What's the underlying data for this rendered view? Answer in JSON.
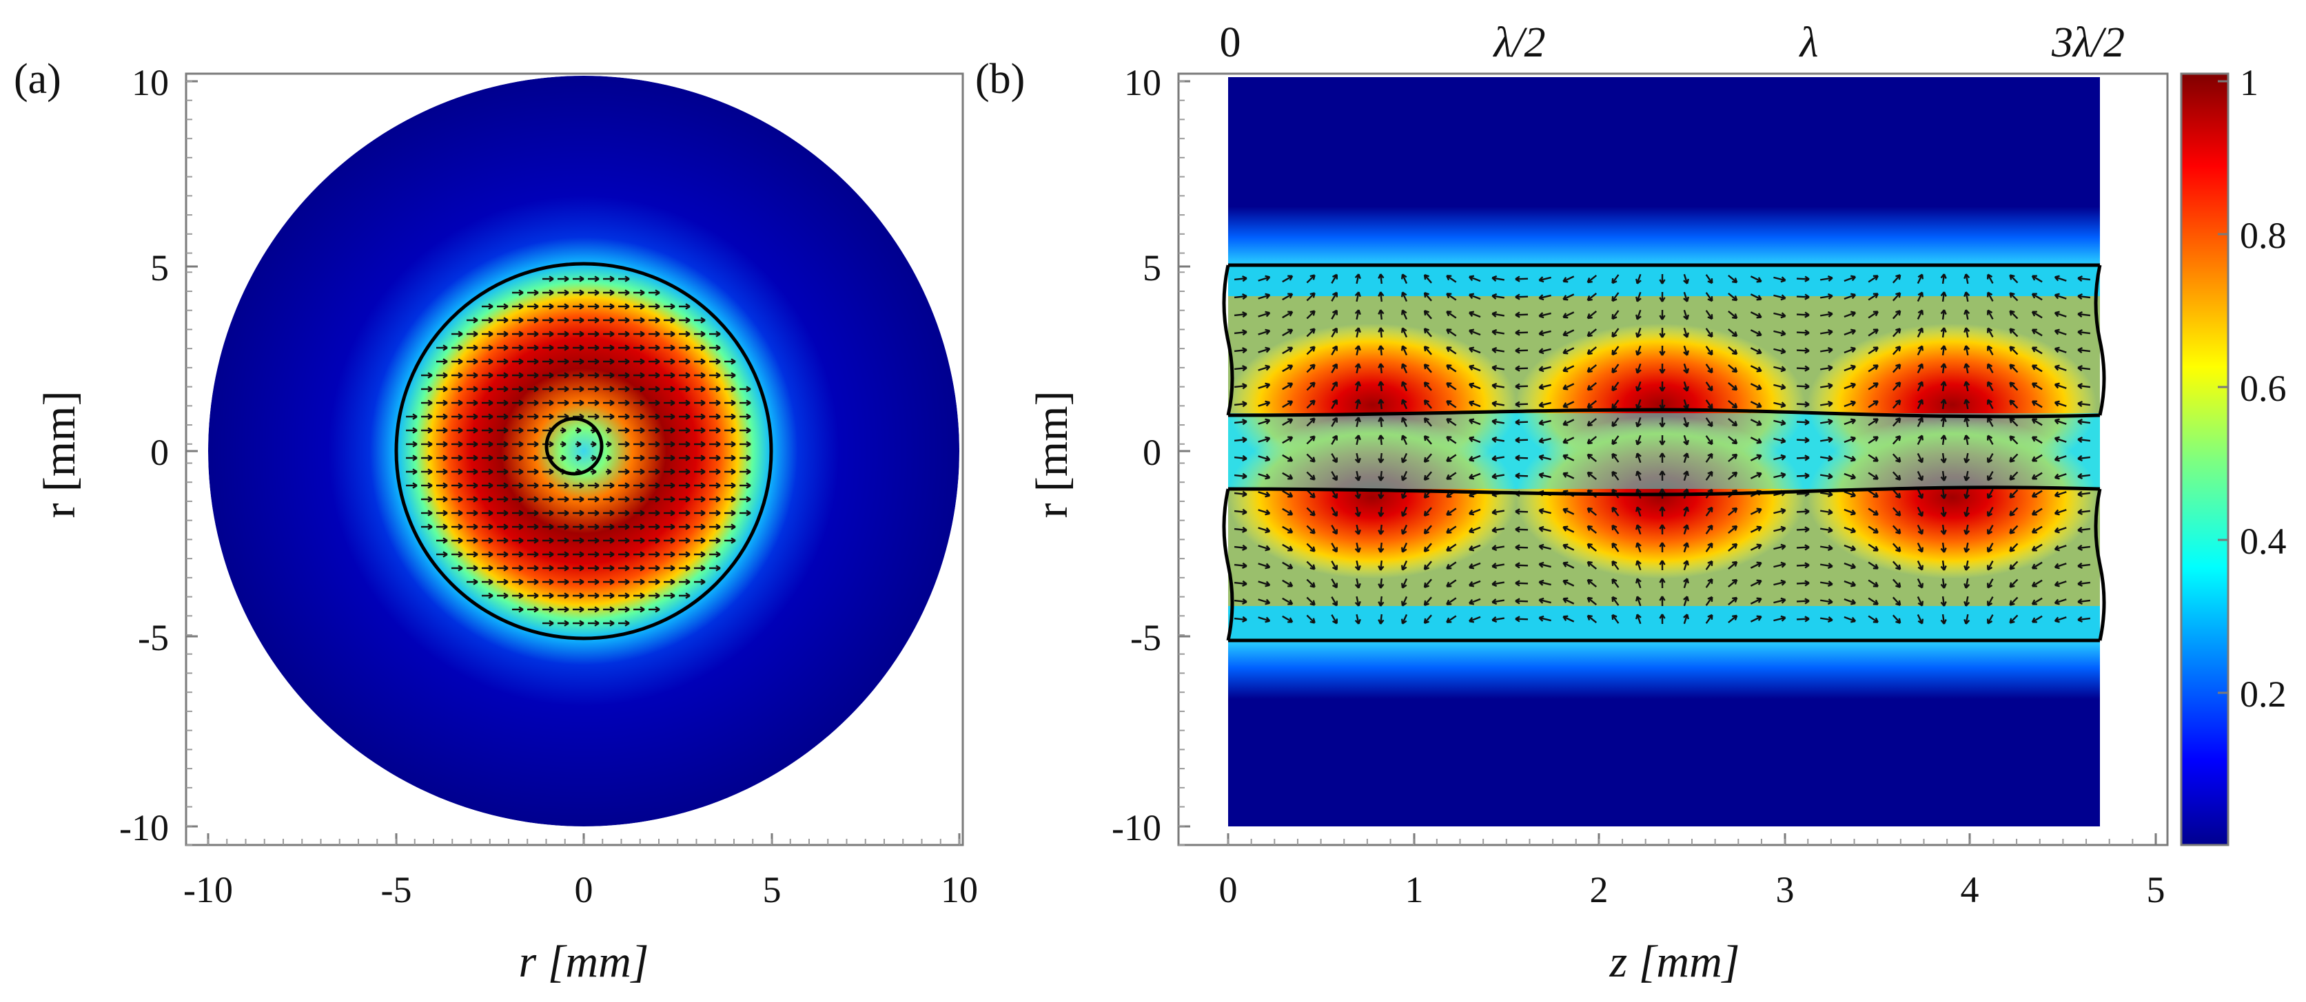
{
  "panels": {
    "a": {
      "label": "(a)",
      "xlabel": "r  [mm]",
      "ylabel": "r  [mm]",
      "xticks": [
        "-10",
        "-5",
        "0",
        "5",
        "10"
      ],
      "yticks": [
        "10",
        "5",
        "0",
        "-5",
        "-10"
      ]
    },
    "b": {
      "label": "(b)",
      "xlabel": "z  [mm]",
      "ylabel": "r  [mm]",
      "xticks": [
        "0",
        "1",
        "2",
        "3",
        "4",
        "5"
      ],
      "yticks": [
        "10",
        "5",
        "0",
        "-5",
        "-10"
      ],
      "top_labels": [
        "0",
        "λ/2",
        "λ",
        "3λ/2"
      ]
    },
    "colorbar": {
      "ticks": [
        "1",
        "0.8",
        "0.6",
        "0.4",
        "0.2"
      ]
    }
  },
  "chart_data": [
    {
      "type": "heatmap",
      "title": "",
      "xlabel": "r [mm]",
      "ylabel": "r [mm]",
      "xlim": [
        -10,
        10
      ],
      "ylim": [
        -10,
        10
      ],
      "domain_radius_mm": 10,
      "boundaries_radius_mm": [
        5,
        0.9
      ],
      "field": "normalized intensity, ring peaked near r ≈ 2.5 mm, arrows horizontal",
      "colormap": "jet",
      "clim": [
        0,
        1
      ]
    },
    {
      "type": "heatmap",
      "title": "",
      "xlabel": "z [mm]",
      "ylabel": "r [mm]",
      "xlim": [
        -0.3,
        5.2
      ],
      "ylim": [
        -10,
        10
      ],
      "domain_z_mm": [
        0,
        4.72
      ],
      "boundaries_r_mm": [
        5,
        1,
        -1,
        -5
      ],
      "hot_spots_z_mm": [
        0.78,
        2.34,
        3.92
      ],
      "hot_spots_r_mm": [
        2.5,
        -2.5
      ],
      "top_axis": {
        "positions_mm": [
          0,
          1.57,
          3.14,
          4.72
        ],
        "labels": [
          "0",
          "λ/2",
          "λ",
          "3λ/2"
        ]
      },
      "colormap": "jet",
      "clim": [
        0,
        1
      ]
    }
  ],
  "colors": {
    "frame": "#7a7a7a",
    "boundary": "#000000",
    "colormap_low": "#00007f",
    "colormap_high": "#7f0000"
  }
}
